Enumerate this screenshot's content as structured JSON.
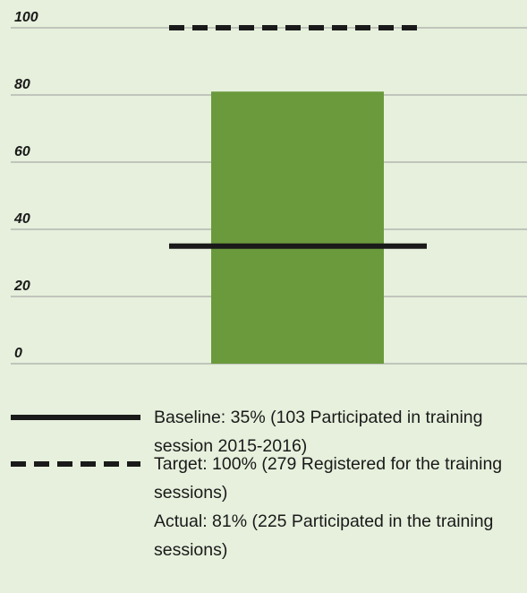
{
  "chart_data": {
    "type": "bar",
    "categories": [
      null
    ],
    "values": [
      81
    ],
    "color": "#6a9a3c",
    "ylim": [
      0,
      100
    ],
    "yticks": [
      0,
      20,
      40,
      60,
      80,
      100
    ],
    "grid": true,
    "baseline": {
      "value": 35,
      "label": "Baseline: 35% (103 Participated in training session 2015-2016)",
      "color": "#1a1a1a"
    },
    "target": {
      "value": 100,
      "label": "Target: 100% (279 Registered for the training sessions)",
      "color": "#1a1a1a"
    },
    "actual_label": "Actual: 81% (225 Participated in the training sessions)"
  }
}
